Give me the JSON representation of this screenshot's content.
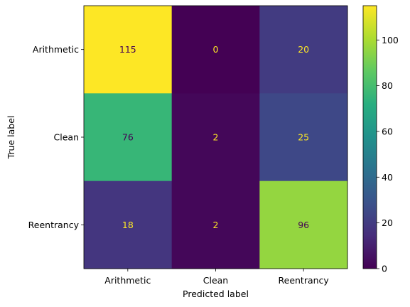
{
  "chart_data": {
    "type": "heatmap",
    "title": "",
    "xlabel": "Predicted label",
    "ylabel": "True label",
    "x_categories": [
      "Arithmetic",
      "Clean",
      "Reentrancy"
    ],
    "y_categories": [
      "Arithmetic",
      "Clean",
      "Reentrancy"
    ],
    "values": [
      [
        115,
        0,
        20
      ],
      [
        76,
        2,
        25
      ],
      [
        18,
        2,
        96
      ]
    ],
    "colormap": "viridis",
    "vmin": 0,
    "vmax": 115,
    "colorbar_ticks": [
      0,
      20,
      40,
      60,
      80,
      100
    ],
    "colorbar_tick_labels": [
      "0",
      "20",
      "40",
      "60",
      "80",
      "100"
    ],
    "text_color_dark": "#440154",
    "text_color_light": "#fde725",
    "grid": false
  }
}
